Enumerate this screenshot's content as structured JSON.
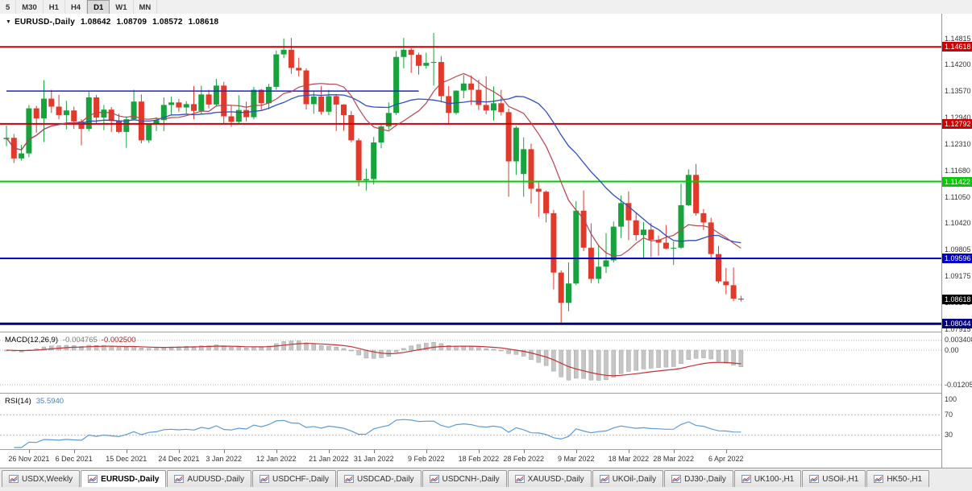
{
  "toolbar": {
    "timeframes": [
      {
        "label": "5",
        "active": false
      },
      {
        "label": "M30",
        "active": false
      },
      {
        "label": "H1",
        "active": false
      },
      {
        "label": "H4",
        "active": false
      },
      {
        "label": "D1",
        "active": true
      },
      {
        "label": "W1",
        "active": false
      },
      {
        "label": "MN",
        "active": false
      }
    ]
  },
  "header": {
    "dropdown_marker": "▼",
    "title": "EURUSD-,Daily",
    "open": "1.08642",
    "high": "1.08709",
    "low": "1.08572",
    "close": "1.08618"
  },
  "tabs": [
    {
      "label": "USDX,Weekly",
      "active": false
    },
    {
      "label": "EURUSD-,Daily",
      "active": true
    },
    {
      "label": "AUDUSD-,Daily",
      "active": false
    },
    {
      "label": "USDCHF-,Daily",
      "active": false
    },
    {
      "label": "USDCAD-,Daily",
      "active": false
    },
    {
      "label": "USDCNH-,Daily",
      "active": false
    },
    {
      "label": "XAUUSD-,Daily",
      "active": false
    },
    {
      "label": "UKOil-,Daily",
      "active": false
    },
    {
      "label": "DJ30-,Daily",
      "active": false
    },
    {
      "label": "UK100-,H1",
      "active": false
    },
    {
      "label": "USOil-,H1",
      "active": false
    },
    {
      "label": "HK50-,H1",
      "active": false
    }
  ],
  "chart_data": {
    "type": "candlestick",
    "symbol": "EURUSD-",
    "period": "Daily",
    "price_range": {
      "top": 1.15408,
      "bottom": 1.07858
    },
    "colors": {
      "bull": "#16a33c",
      "bear": "#e23a2a",
      "ma_fast": "#b8444e",
      "ma_slow": "#2c4fc4",
      "macd_hist_fill": "#c6c6c6",
      "macd_hist_stroke": "#a2a2a2",
      "macd_signal": "#c23232",
      "rsi_line": "#5b9bd5",
      "level_red": "#cc0000",
      "level_green": "#00cc00",
      "level_blue": "#0000cc",
      "level_navy": "#000080",
      "current_black": "#000000"
    },
    "ma_periods": {
      "fast": 10,
      "slow": 20
    },
    "price_axis_labels": [
      {
        "text": "1.14815",
        "price": 1.14815
      },
      {
        "text": "1.14200",
        "price": 1.142
      },
      {
        "text": "1.13570",
        "price": 1.1357
      },
      {
        "text": "1.12940",
        "price": 1.1294
      },
      {
        "text": "1.12310",
        "price": 1.1231
      },
      {
        "text": "1.11680",
        "price": 1.1168
      },
      {
        "text": "1.11050",
        "price": 1.1105
      },
      {
        "text": "1.10420",
        "price": 1.1042
      },
      {
        "text": "1.09805",
        "price": 1.09805
      },
      {
        "text": "1.09175",
        "price": 1.09175
      },
      {
        "text": "1.08545",
        "price": 1.08545
      },
      {
        "text": "1.07915",
        "price": 1.07915
      }
    ],
    "levels": [
      {
        "text": "1.14618",
        "price": 1.14618,
        "color": "#cc0000",
        "width": 2
      },
      {
        "text": "1.12792",
        "price": 1.12792,
        "color": "#cc0000",
        "width": 2
      },
      {
        "text": "1.11422",
        "price": 1.11422,
        "color": "#00cc00",
        "width": 2
      },
      {
        "text": "1.09596",
        "price": 1.09596,
        "color": "#0000cc",
        "width": 2
      },
      {
        "text": "1.08044",
        "price": 1.08044,
        "color": "#000080",
        "width": 3
      }
    ],
    "current_price": {
      "text": "1.08618",
      "price": 1.08618,
      "color": "#000000"
    },
    "trend_segment": {
      "price": 1.1357,
      "from_index": 0,
      "to_index": 55,
      "color": "#2222cc"
    },
    "candles": [
      [
        1.1243,
        1.1275,
        1.1226,
        1.1246
      ],
      [
        1.1246,
        1.1255,
        1.1186,
        1.1197
      ],
      [
        1.1197,
        1.1229,
        1.1192,
        1.1209
      ],
      [
        1.1209,
        1.1324,
        1.12,
        1.1316
      ],
      [
        1.1316,
        1.1322,
        1.1258,
        1.1292
      ],
      [
        1.1292,
        1.1383,
        1.1236,
        1.1339
      ],
      [
        1.1339,
        1.136,
        1.1305,
        1.132
      ],
      [
        1.132,
        1.1348,
        1.129,
        1.13
      ],
      [
        1.13,
        1.1334,
        1.1266,
        1.1311
      ],
      [
        1.1311,
        1.132,
        1.1267,
        1.1285
      ],
      [
        1.1285,
        1.129,
        1.1228,
        1.1267
      ],
      [
        1.1267,
        1.1355,
        1.1262,
        1.1342
      ],
      [
        1.1342,
        1.1348,
        1.128,
        1.1294
      ],
      [
        1.1294,
        1.1324,
        1.1264,
        1.1313
      ],
      [
        1.1313,
        1.1319,
        1.126,
        1.1286
      ],
      [
        1.1286,
        1.1303,
        1.1257,
        1.126
      ],
      [
        1.126,
        1.1297,
        1.1222,
        1.129
      ],
      [
        1.129,
        1.136,
        1.1288,
        1.1332
      ],
      [
        1.1332,
        1.1349,
        1.1233,
        1.124
      ],
      [
        1.124,
        1.128,
        1.1234,
        1.1278
      ],
      [
        1.1278,
        1.1295,
        1.1262,
        1.1288
      ],
      [
        1.1288,
        1.1342,
        1.1262,
        1.1324
      ],
      [
        1.1324,
        1.1344,
        1.13,
        1.133
      ],
      [
        1.133,
        1.1338,
        1.1308,
        1.1318
      ],
      [
        1.1318,
        1.1333,
        1.1304,
        1.1326
      ],
      [
        1.1326,
        1.1369,
        1.129,
        1.131
      ],
      [
        1.131,
        1.137,
        1.1302,
        1.1349
      ],
      [
        1.1349,
        1.136,
        1.1316,
        1.1325
      ],
      [
        1.1325,
        1.1386,
        1.132,
        1.137
      ],
      [
        1.137,
        1.1379,
        1.1279,
        1.1297
      ],
      [
        1.1297,
        1.1323,
        1.1272,
        1.1284
      ],
      [
        1.1284,
        1.1347,
        1.128,
        1.1312
      ],
      [
        1.1312,
        1.1332,
        1.1285,
        1.1295
      ],
      [
        1.1295,
        1.1367,
        1.129,
        1.136
      ],
      [
        1.136,
        1.1362,
        1.1313,
        1.1328
      ],
      [
        1.1328,
        1.1374,
        1.1314,
        1.1367
      ],
      [
        1.1367,
        1.1453,
        1.136,
        1.1444
      ],
      [
        1.1444,
        1.1482,
        1.1435,
        1.1455
      ],
      [
        1.1455,
        1.1483,
        1.1398,
        1.1412
      ],
      [
        1.1412,
        1.1436,
        1.1392,
        1.1406
      ],
      [
        1.1406,
        1.1411,
        1.1313,
        1.1326
      ],
      [
        1.1326,
        1.1357,
        1.1303,
        1.1344
      ],
      [
        1.1344,
        1.1369,
        1.1301,
        1.1308
      ],
      [
        1.1308,
        1.136,
        1.13,
        1.1345
      ],
      [
        1.1345,
        1.1349,
        1.1262,
        1.1325
      ],
      [
        1.1325,
        1.1326,
        1.1263,
        1.13
      ],
      [
        1.13,
        1.131,
        1.1235,
        1.124
      ],
      [
        1.124,
        1.1245,
        1.1131,
        1.1145
      ],
      [
        1.1145,
        1.1173,
        1.1121,
        1.1148
      ],
      [
        1.1148,
        1.1248,
        1.1135,
        1.1235
      ],
      [
        1.1235,
        1.1279,
        1.1221,
        1.1273
      ],
      [
        1.1273,
        1.133,
        1.1265,
        1.1305
      ],
      [
        1.1305,
        1.1452,
        1.13,
        1.1438
      ],
      [
        1.1438,
        1.1483,
        1.1411,
        1.1455
      ],
      [
        1.1455,
        1.1459,
        1.14,
        1.1443
      ],
      [
        1.1443,
        1.1448,
        1.1396,
        1.1417
      ],
      [
        1.1417,
        1.1448,
        1.141,
        1.1424
      ],
      [
        1.1424,
        1.1495,
        1.137,
        1.1426
      ],
      [
        1.1426,
        1.144,
        1.133,
        1.1345
      ],
      [
        1.1345,
        1.1369,
        1.1278,
        1.1305
      ],
      [
        1.1305,
        1.1359,
        1.1301,
        1.1358
      ],
      [
        1.1358,
        1.1395,
        1.134,
        1.1375
      ],
      [
        1.1375,
        1.1394,
        1.1324,
        1.136
      ],
      [
        1.136,
        1.1384,
        1.1312,
        1.1324
      ],
      [
        1.1324,
        1.1392,
        1.1302,
        1.1311
      ],
      [
        1.1311,
        1.1368,
        1.1287,
        1.1328
      ],
      [
        1.1328,
        1.136,
        1.1299,
        1.1307
      ],
      [
        1.1307,
        1.1315,
        1.1106,
        1.119
      ],
      [
        1.119,
        1.1274,
        1.1158,
        1.127
      ],
      [
        1.116,
        1.1247,
        1.1106,
        1.1219
      ],
      [
        1.1219,
        1.1232,
        1.109,
        1.1125
      ],
      [
        1.1125,
        1.1141,
        1.1058,
        1.1118
      ],
      [
        1.1118,
        1.1121,
        1.1045,
        1.1067
      ],
      [
        1.1067,
        1.1075,
        1.0886,
        1.0926
      ],
      [
        1.0926,
        1.0931,
        1.0806,
        1.0854
      ],
      [
        1.0854,
        1.095,
        1.0834,
        1.09
      ],
      [
        1.09,
        1.1096,
        1.0896,
        1.1073
      ],
      [
        1.1073,
        1.1121,
        1.0977,
        1.0985
      ],
      [
        1.0985,
        1.1043,
        1.0901,
        1.0911
      ],
      [
        1.0911,
        1.0993,
        1.09,
        1.094
      ],
      [
        1.094,
        1.102,
        1.0925,
        1.0955
      ],
      [
        1.0955,
        1.1047,
        1.095,
        1.1035
      ],
      [
        1.1035,
        1.1109,
        1.1008,
        1.1091
      ],
      [
        1.1091,
        1.1119,
        1.1003,
        1.105
      ],
      [
        1.105,
        1.1069,
        1.1002,
        1.1015
      ],
      [
        1.1015,
        1.1046,
        1.0961,
        1.1028
      ],
      [
        1.1028,
        1.1044,
        1.0963,
        1.1004
      ],
      [
        1.1004,
        1.1014,
        1.0966,
        1.0997
      ],
      [
        1.0997,
        1.1039,
        1.0981,
        1.0983
      ],
      [
        1.0983,
        1.1,
        1.0944,
        1.0985
      ],
      [
        1.0985,
        1.1137,
        1.0982,
        1.1086
      ],
      [
        1.1086,
        1.1171,
        1.1084,
        1.1158
      ],
      [
        1.1158,
        1.1184,
        1.1061,
        1.1067
      ],
      [
        1.1067,
        1.1077,
        1.1027,
        1.1045
      ],
      [
        1.1045,
        1.1056,
        1.096,
        1.097
      ],
      [
        1.097,
        1.0989,
        1.09,
        1.0905
      ],
      [
        1.0905,
        1.0937,
        1.0874,
        1.0896
      ],
      [
        1.0896,
        1.0938,
        1.0858,
        1.0864
      ],
      [
        1.08642,
        1.08709,
        1.08572,
        1.08618
      ]
    ],
    "date_labels": [
      {
        "index": 3,
        "text": "26 Nov 2021"
      },
      {
        "index": 9,
        "text": "6 Dec 2021"
      },
      {
        "index": 16,
        "text": "15 Dec 2021"
      },
      {
        "index": 23,
        "text": "24 Dec 2021"
      },
      {
        "index": 29,
        "text": "3 Jan 2022"
      },
      {
        "index": 36,
        "text": "12 Jan 2022"
      },
      {
        "index": 43,
        "text": "21 Jan 2022"
      },
      {
        "index": 49,
        "text": "31 Jan 2022"
      },
      {
        "index": 56,
        "text": "9 Feb 2022"
      },
      {
        "index": 63,
        "text": "18 Feb 2022"
      },
      {
        "index": 69,
        "text": "28 Feb 2022"
      },
      {
        "index": 76,
        "text": "9 Mar 2022"
      },
      {
        "index": 83,
        "text": "18 Mar 2022"
      },
      {
        "index": 89,
        "text": "28 Mar 2022"
      },
      {
        "index": 96,
        "text": "6 Apr 2022"
      }
    ],
    "indicators": {
      "macd": {
        "label": "MACD(12,26,9)",
        "params": [
          12,
          26,
          9
        ],
        "value_main": "-0.004765",
        "value_signal": "-0.002500",
        "axis_labels": [
          {
            "text": "0.003408",
            "value": 0.003408
          },
          {
            "text": "0.00",
            "value": 0
          },
          {
            "text": "-0.01205",
            "value": -0.01205
          }
        ]
      },
      "rsi": {
        "label": "RSI(14)",
        "period": 14,
        "value": "35.5940",
        "axis_labels": [
          {
            "text": "100",
            "value": 100
          },
          {
            "text": "70",
            "value": 70
          },
          {
            "text": "30",
            "value": 30
          }
        ],
        "guide_levels": [
          70,
          30
        ]
      }
    }
  }
}
